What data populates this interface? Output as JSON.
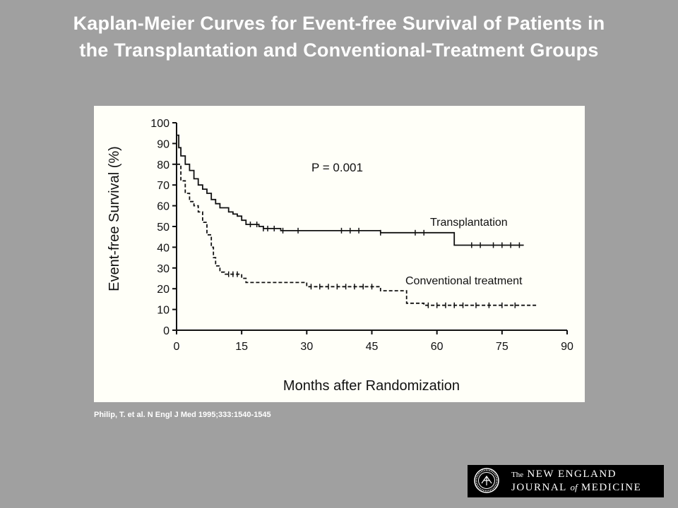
{
  "slide": {
    "title_line1": "Kaplan-Meier Curves for Event-free Survival of Patients in",
    "title_line2": "the Transplantation and Conventional-Treatment Groups",
    "citation": "Philip, T. et al. N Engl J Med 1995;333:1540-1545",
    "logo": {
      "prefix": "The",
      "line1": "NEW ENGLAND",
      "line2_a": "JOURNAL",
      "line2_of": "of",
      "line2_b": "MEDICINE"
    },
    "colors": {
      "background": "#a0a0a0",
      "title": "#ffffff",
      "panel": "#fffff8",
      "ink": "#111111",
      "logo_bg": "#000000"
    }
  },
  "chart_data": {
    "type": "line",
    "step": true,
    "xlabel": "Months after Randomization",
    "ylabel": "Event-free Survival (%)",
    "xlim": [
      0,
      90
    ],
    "ylim": [
      0,
      100
    ],
    "x_ticks": [
      0,
      15,
      30,
      45,
      60,
      75,
      90
    ],
    "y_ticks": [
      0,
      10,
      20,
      30,
      40,
      50,
      60,
      70,
      80,
      90,
      100
    ],
    "annotation": "P = 0.001",
    "grid": false,
    "series": [
      {
        "name": "Transplantation",
        "style": "solid",
        "points": [
          [
            0,
            94
          ],
          [
            0.5,
            88
          ],
          [
            1,
            84
          ],
          [
            2,
            80
          ],
          [
            3,
            77
          ],
          [
            4,
            73
          ],
          [
            5,
            70
          ],
          [
            6,
            68
          ],
          [
            7,
            66
          ],
          [
            8,
            63
          ],
          [
            9,
            61
          ],
          [
            10,
            59
          ],
          [
            12,
            57
          ],
          [
            13,
            56
          ],
          [
            14,
            55
          ],
          [
            15,
            53
          ],
          [
            16,
            51
          ],
          [
            19,
            50
          ],
          [
            20,
            49
          ],
          [
            24,
            48
          ],
          [
            47,
            47
          ],
          [
            64,
            47
          ],
          [
            64,
            41
          ],
          [
            80,
            41
          ]
        ],
        "censor_x": [
          17,
          18.5,
          20,
          21,
          22.5,
          24.5,
          28,
          38,
          40,
          42,
          47,
          55,
          57,
          68,
          70,
          73,
          75,
          77,
          79
        ]
      },
      {
        "name": "Conventional treatment",
        "style": "dashed",
        "points": [
          [
            0,
            80
          ],
          [
            1,
            72
          ],
          [
            2,
            66
          ],
          [
            3,
            62
          ],
          [
            4,
            60
          ],
          [
            5,
            57
          ],
          [
            6,
            52
          ],
          [
            7,
            46
          ],
          [
            8,
            40
          ],
          [
            8.5,
            35
          ],
          [
            9,
            31
          ],
          [
            10,
            28
          ],
          [
            11,
            27
          ],
          [
            15,
            25
          ],
          [
            16,
            23
          ],
          [
            30,
            21
          ],
          [
            47,
            19
          ],
          [
            53,
            19
          ],
          [
            53,
            13
          ],
          [
            57,
            12
          ],
          [
            83,
            12
          ]
        ],
        "censor_x": [
          12,
          13,
          14,
          31,
          33,
          35,
          37,
          39,
          41,
          43,
          45,
          58,
          60,
          62,
          64,
          66,
          69,
          72,
          75,
          78
        ]
      }
    ]
  }
}
